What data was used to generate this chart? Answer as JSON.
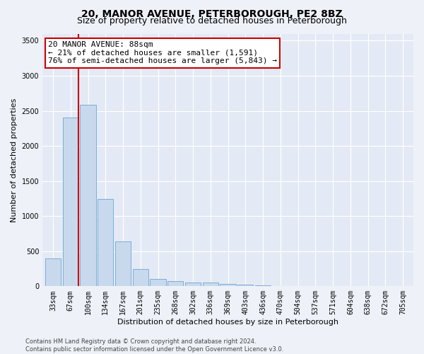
{
  "title": "20, MANOR AVENUE, PETERBOROUGH, PE2 8BZ",
  "subtitle": "Size of property relative to detached houses in Peterborough",
  "xlabel": "Distribution of detached houses by size in Peterborough",
  "ylabel": "Number of detached properties",
  "categories": [
    "33sqm",
    "67sqm",
    "100sqm",
    "134sqm",
    "167sqm",
    "201sqm",
    "235sqm",
    "268sqm",
    "302sqm",
    "336sqm",
    "369sqm",
    "403sqm",
    "436sqm",
    "470sqm",
    "504sqm",
    "537sqm",
    "571sqm",
    "604sqm",
    "638sqm",
    "672sqm",
    "705sqm"
  ],
  "values": [
    395,
    2400,
    2590,
    1240,
    640,
    250,
    100,
    72,
    58,
    52,
    30,
    25,
    10,
    6,
    3,
    2,
    1,
    1,
    0,
    0,
    0
  ],
  "bar_color": "#c8d9ee",
  "bar_edge_color": "#7aaed6",
  "annotation_text": "20 MANOR AVENUE: 88sqm\n← 21% of detached houses are smaller (1,591)\n76% of semi-detached houses are larger (5,843) →",
  "annotation_box_color": "#ffffff",
  "annotation_box_edge": "#cc0000",
  "red_line_index": 2,
  "ylim": [
    0,
    3600
  ],
  "yticks": [
    0,
    500,
    1000,
    1500,
    2000,
    2500,
    3000,
    3500
  ],
  "footer_text": "Contains HM Land Registry data © Crown copyright and database right 2024.\nContains public sector information licensed under the Open Government Licence v3.0.",
  "background_color": "#eef2f8",
  "plot_bg_color": "#e4eaf5",
  "grid_color": "#ffffff",
  "title_fontsize": 10,
  "subtitle_fontsize": 9,
  "axis_label_fontsize": 8,
  "tick_fontsize": 7,
  "annot_fontsize": 8
}
